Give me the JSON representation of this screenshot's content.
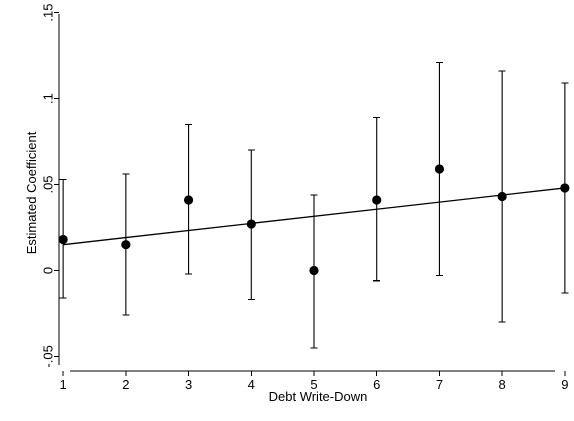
{
  "chart_data": {
    "type": "scatter",
    "title": "",
    "xlabel": "Debt Write-Down",
    "ylabel": "Estimated Coefficient",
    "xlim": [
      0.95,
      9.05
    ],
    "ylim": [
      -0.055,
      0.155
    ],
    "x_ticks": [
      1,
      2,
      3,
      4,
      5,
      6,
      7,
      8,
      9
    ],
    "x_tick_labels": [
      "1",
      "2",
      "3",
      "4",
      "5",
      "6",
      "7",
      "8",
      "9"
    ],
    "y_ticks": [
      -0.05,
      0,
      0.05,
      0.1,
      0.15
    ],
    "y_tick_labels": [
      "-.05",
      "0",
      ".05",
      ".1",
      ".15"
    ],
    "grid": false,
    "legend": false,
    "marker_color": "#000000",
    "line_color": "#000000",
    "series": [
      {
        "type": "scatter",
        "x": [
          1,
          2,
          3,
          4,
          5,
          6,
          7,
          8,
          9
        ],
        "y": [
          0.018,
          0.015,
          0.041,
          0.027,
          0.0,
          0.041,
          0.059,
          0.043,
          0.048
        ],
        "ci_low": [
          -0.016,
          -0.026,
          -0.002,
          -0.017,
          -0.045,
          -0.006,
          -0.003,
          -0.03,
          -0.013
        ],
        "ci_high": [
          0.053,
          0.056,
          0.085,
          0.07,
          0.044,
          0.089,
          0.121,
          0.116,
          0.109
        ]
      },
      {
        "type": "line",
        "x": [
          1,
          9
        ],
        "y": [
          0.015,
          0.048
        ]
      }
    ]
  }
}
